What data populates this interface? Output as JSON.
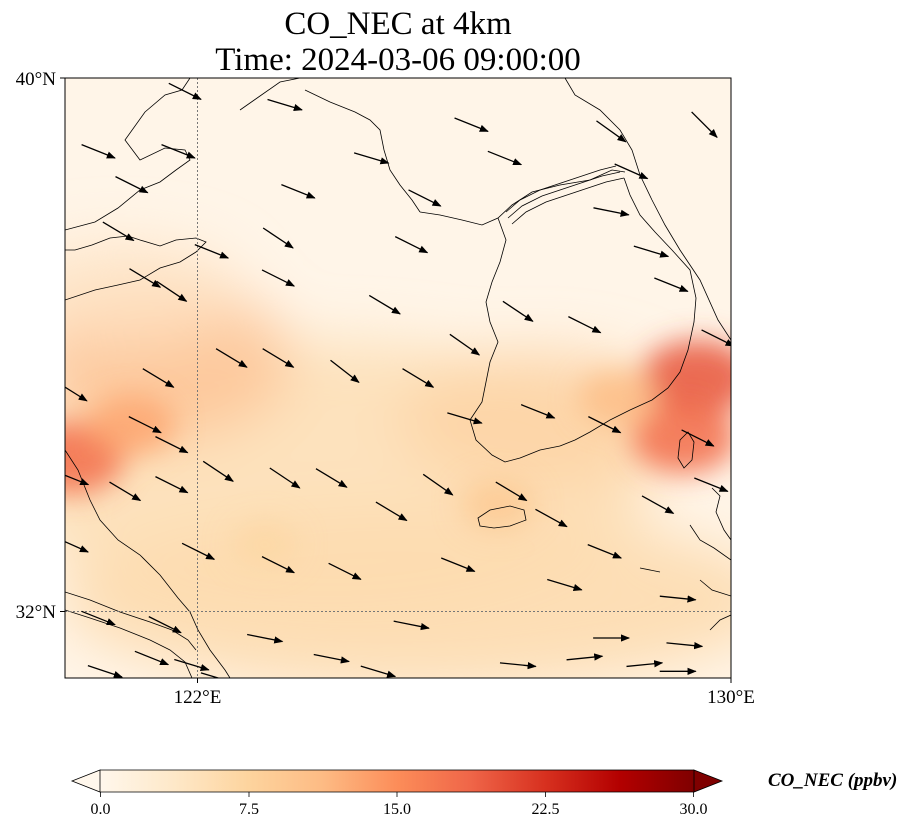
{
  "title": {
    "line1": "CO_NEC at 4km",
    "line2": "Time: 2024-03-06 09:00:00"
  },
  "axes": {
    "lat_ticks": [
      "40°N",
      "32°N"
    ],
    "lon_ticks": [
      "122°E",
      "130°E"
    ],
    "lon_range": [
      120,
      130
    ],
    "lat_range": [
      31,
      40
    ]
  },
  "colorbar": {
    "label": "CO_NEC (ppbv)",
    "ticks": [
      "0.0",
      "7.5",
      "15.0",
      "22.5",
      "30.0"
    ],
    "range": [
      0,
      30
    ],
    "extend": "both",
    "colormap": "OrRd",
    "colors": [
      "#fff7ec",
      "#fee8c8",
      "#fdd49e",
      "#fdbb84",
      "#fc8d59",
      "#ef6548",
      "#d7301f",
      "#b30000",
      "#7f0000"
    ]
  },
  "chart_data": {
    "type": "heatmap",
    "variable": "CO_NEC",
    "units": "ppbv",
    "level": "4km",
    "time": "2024-03-06 09:00:00",
    "lon_range": [
      120,
      130
    ],
    "lat_range": [
      31,
      40
    ],
    "gridlines": {
      "lon": [
        122
      ],
      "lat": [
        32
      ]
    },
    "concentration_hotspots": [
      {
        "lon": 120.1,
        "lat": 34.3,
        "value": 18
      },
      {
        "lon": 121.0,
        "lat": 34.8,
        "value": 13
      },
      {
        "lon": 129.5,
        "lat": 35.5,
        "value": 20
      },
      {
        "lon": 129.3,
        "lat": 34.6,
        "value": 18
      },
      {
        "lon": 128.3,
        "lat": 35.2,
        "value": 11
      },
      {
        "lon": 126.5,
        "lat": 33.6,
        "value": 9
      },
      {
        "lon": 123.0,
        "lat": 33.0,
        "value": 7
      }
    ],
    "background_value": 2,
    "wind_vectors": [
      {
        "lon": 121.8,
        "lat": 39.8,
        "u": 1.0,
        "v": -0.5
      },
      {
        "lon": 123.3,
        "lat": 39.6,
        "u": 1.0,
        "v": -0.3
      },
      {
        "lon": 126.1,
        "lat": 39.3,
        "u": 1.0,
        "v": -0.4
      },
      {
        "lon": 128.2,
        "lat": 39.2,
        "u": 0.7,
        "v": -0.5
      },
      {
        "lon": 129.6,
        "lat": 39.3,
        "u": 0.6,
        "v": -0.6
      },
      {
        "lon": 120.5,
        "lat": 38.9,
        "u": 1.0,
        "v": -0.4
      },
      {
        "lon": 121.7,
        "lat": 38.9,
        "u": 1.0,
        "v": -0.4
      },
      {
        "lon": 124.6,
        "lat": 38.8,
        "u": 1.0,
        "v": -0.3
      },
      {
        "lon": 126.6,
        "lat": 38.8,
        "u": 1.0,
        "v": -0.4
      },
      {
        "lon": 128.5,
        "lat": 38.6,
        "u": 0.9,
        "v": -0.4
      },
      {
        "lon": 121.0,
        "lat": 38.4,
        "u": 1.0,
        "v": -0.5
      },
      {
        "lon": 123.5,
        "lat": 38.3,
        "u": 1.0,
        "v": -0.4
      },
      {
        "lon": 125.4,
        "lat": 38.2,
        "u": 1.0,
        "v": -0.5
      },
      {
        "lon": 128.2,
        "lat": 38.0,
        "u": 1.0,
        "v": -0.2
      },
      {
        "lon": 120.8,
        "lat": 37.7,
        "u": 1.0,
        "v": -0.6
      },
      {
        "lon": 123.2,
        "lat": 37.6,
        "u": 0.9,
        "v": -0.6
      },
      {
        "lon": 125.2,
        "lat": 37.5,
        "u": 1.0,
        "v": -0.5
      },
      {
        "lon": 122.2,
        "lat": 37.4,
        "u": 1.0,
        "v": -0.4
      },
      {
        "lon": 128.8,
        "lat": 37.4,
        "u": 1.0,
        "v": -0.3
      },
      {
        "lon": 121.2,
        "lat": 37.0,
        "u": 1.0,
        "v": -0.6
      },
      {
        "lon": 123.2,
        "lat": 37.0,
        "u": 1.0,
        "v": -0.5
      },
      {
        "lon": 129.1,
        "lat": 36.9,
        "u": 1.0,
        "v": -0.4
      },
      {
        "lon": 121.6,
        "lat": 36.8,
        "u": 0.9,
        "v": -0.6
      },
      {
        "lon": 124.8,
        "lat": 36.6,
        "u": 1.0,
        "v": -0.6
      },
      {
        "lon": 126.8,
        "lat": 36.5,
        "u": 0.9,
        "v": -0.6
      },
      {
        "lon": 127.8,
        "lat": 36.3,
        "u": 1.0,
        "v": -0.5
      },
      {
        "lon": 129.8,
        "lat": 36.1,
        "u": 1.0,
        "v": -0.5
      },
      {
        "lon": 126.0,
        "lat": 36.0,
        "u": 1.0,
        "v": -0.7
      },
      {
        "lon": 122.5,
        "lat": 35.8,
        "u": 1.0,
        "v": -0.6
      },
      {
        "lon": 123.2,
        "lat": 35.8,
        "u": 1.0,
        "v": -0.6
      },
      {
        "lon": 124.2,
        "lat": 35.6,
        "u": 0.9,
        "v": -0.7
      },
      {
        "lon": 121.4,
        "lat": 35.5,
        "u": 1.0,
        "v": -0.6
      },
      {
        "lon": 125.3,
        "lat": 35.5,
        "u": 1.0,
        "v": -0.6
      },
      {
        "lon": 120.1,
        "lat": 35.3,
        "u": 0.8,
        "v": -0.5
      },
      {
        "lon": 127.1,
        "lat": 35.0,
        "u": 1.0,
        "v": -0.4
      },
      {
        "lon": 126.0,
        "lat": 34.9,
        "u": 1.0,
        "v": -0.3
      },
      {
        "lon": 128.1,
        "lat": 34.8,
        "u": 1.0,
        "v": -0.5
      },
      {
        "lon": 121.2,
        "lat": 34.8,
        "u": 1.0,
        "v": -0.5
      },
      {
        "lon": 129.5,
        "lat": 34.6,
        "u": 1.0,
        "v": -0.5
      },
      {
        "lon": 121.6,
        "lat": 34.5,
        "u": 1.0,
        "v": -0.5
      },
      {
        "lon": 122.3,
        "lat": 34.1,
        "u": 0.9,
        "v": -0.6
      },
      {
        "lon": 123.3,
        "lat": 34.0,
        "u": 0.9,
        "v": -0.6
      },
      {
        "lon": 124.0,
        "lat": 34.0,
        "u": 1.0,
        "v": -0.6
      },
      {
        "lon": 120.1,
        "lat": 34.0,
        "u": 1.0,
        "v": -0.4
      },
      {
        "lon": 125.6,
        "lat": 33.9,
        "u": 1.0,
        "v": -0.7
      },
      {
        "lon": 126.7,
        "lat": 33.8,
        "u": 1.0,
        "v": -0.6
      },
      {
        "lon": 128.9,
        "lat": 33.6,
        "u": 0.9,
        "v": -0.5
      },
      {
        "lon": 129.7,
        "lat": 33.9,
        "u": 1.0,
        "v": -0.4
      },
      {
        "lon": 121.6,
        "lat": 33.9,
        "u": 1.0,
        "v": -0.5
      },
      {
        "lon": 120.9,
        "lat": 33.8,
        "u": 1.0,
        "v": -0.6
      },
      {
        "lon": 124.9,
        "lat": 33.5,
        "u": 1.0,
        "v": -0.6
      },
      {
        "lon": 127.3,
        "lat": 33.4,
        "u": 0.9,
        "v": -0.5
      },
      {
        "lon": 120.1,
        "lat": 33.0,
        "u": 0.9,
        "v": -0.4
      },
      {
        "lon": 122.0,
        "lat": 32.9,
        "u": 1.0,
        "v": -0.5
      },
      {
        "lon": 125.9,
        "lat": 32.7,
        "u": 1.0,
        "v": -0.4
      },
      {
        "lon": 128.1,
        "lat": 32.9,
        "u": 1.0,
        "v": -0.4
      },
      {
        "lon": 123.2,
        "lat": 32.7,
        "u": 1.0,
        "v": -0.5
      },
      {
        "lon": 124.2,
        "lat": 32.6,
        "u": 1.0,
        "v": -0.5
      },
      {
        "lon": 127.5,
        "lat": 32.4,
        "u": 1.0,
        "v": -0.3
      },
      {
        "lon": 129.2,
        "lat": 32.2,
        "u": 1.0,
        "v": -0.1
      },
      {
        "lon": 120.5,
        "lat": 31.9,
        "u": 1.0,
        "v": -0.4
      },
      {
        "lon": 121.5,
        "lat": 31.8,
        "u": 1.0,
        "v": -0.5
      },
      {
        "lon": 123.0,
        "lat": 31.6,
        "u": 1.0,
        "v": -0.2
      },
      {
        "lon": 125.2,
        "lat": 31.8,
        "u": 1.0,
        "v": -0.2
      },
      {
        "lon": 128.2,
        "lat": 31.6,
        "u": 1.0,
        "v": 0.0
      },
      {
        "lon": 129.3,
        "lat": 31.5,
        "u": 1.0,
        "v": -0.1
      },
      {
        "lon": 124.0,
        "lat": 31.3,
        "u": 1.0,
        "v": -0.2
      },
      {
        "lon": 126.8,
        "lat": 31.2,
        "u": 1.0,
        "v": -0.1
      },
      {
        "lon": 120.6,
        "lat": 31.1,
        "u": 0.9,
        "v": -0.3
      },
      {
        "lon": 122.3,
        "lat": 31.0,
        "u": 1.0,
        "v": -0.3
      },
      {
        "lon": 124.7,
        "lat": 31.1,
        "u": 1.0,
        "v": -0.3
      },
      {
        "lon": 128.7,
        "lat": 31.2,
        "u": 1.0,
        "v": 0.1
      },
      {
        "lon": 129.2,
        "lat": 31.1,
        "u": 1.0,
        "v": 0.0
      },
      {
        "lon": 127.8,
        "lat": 31.3,
        "u": 1.0,
        "v": 0.1
      },
      {
        "lon": 121.9,
        "lat": 31.2,
        "u": 1.0,
        "v": -0.3
      },
      {
        "lon": 121.3,
        "lat": 31.3,
        "u": 1.0,
        "v": -0.4
      }
    ]
  }
}
